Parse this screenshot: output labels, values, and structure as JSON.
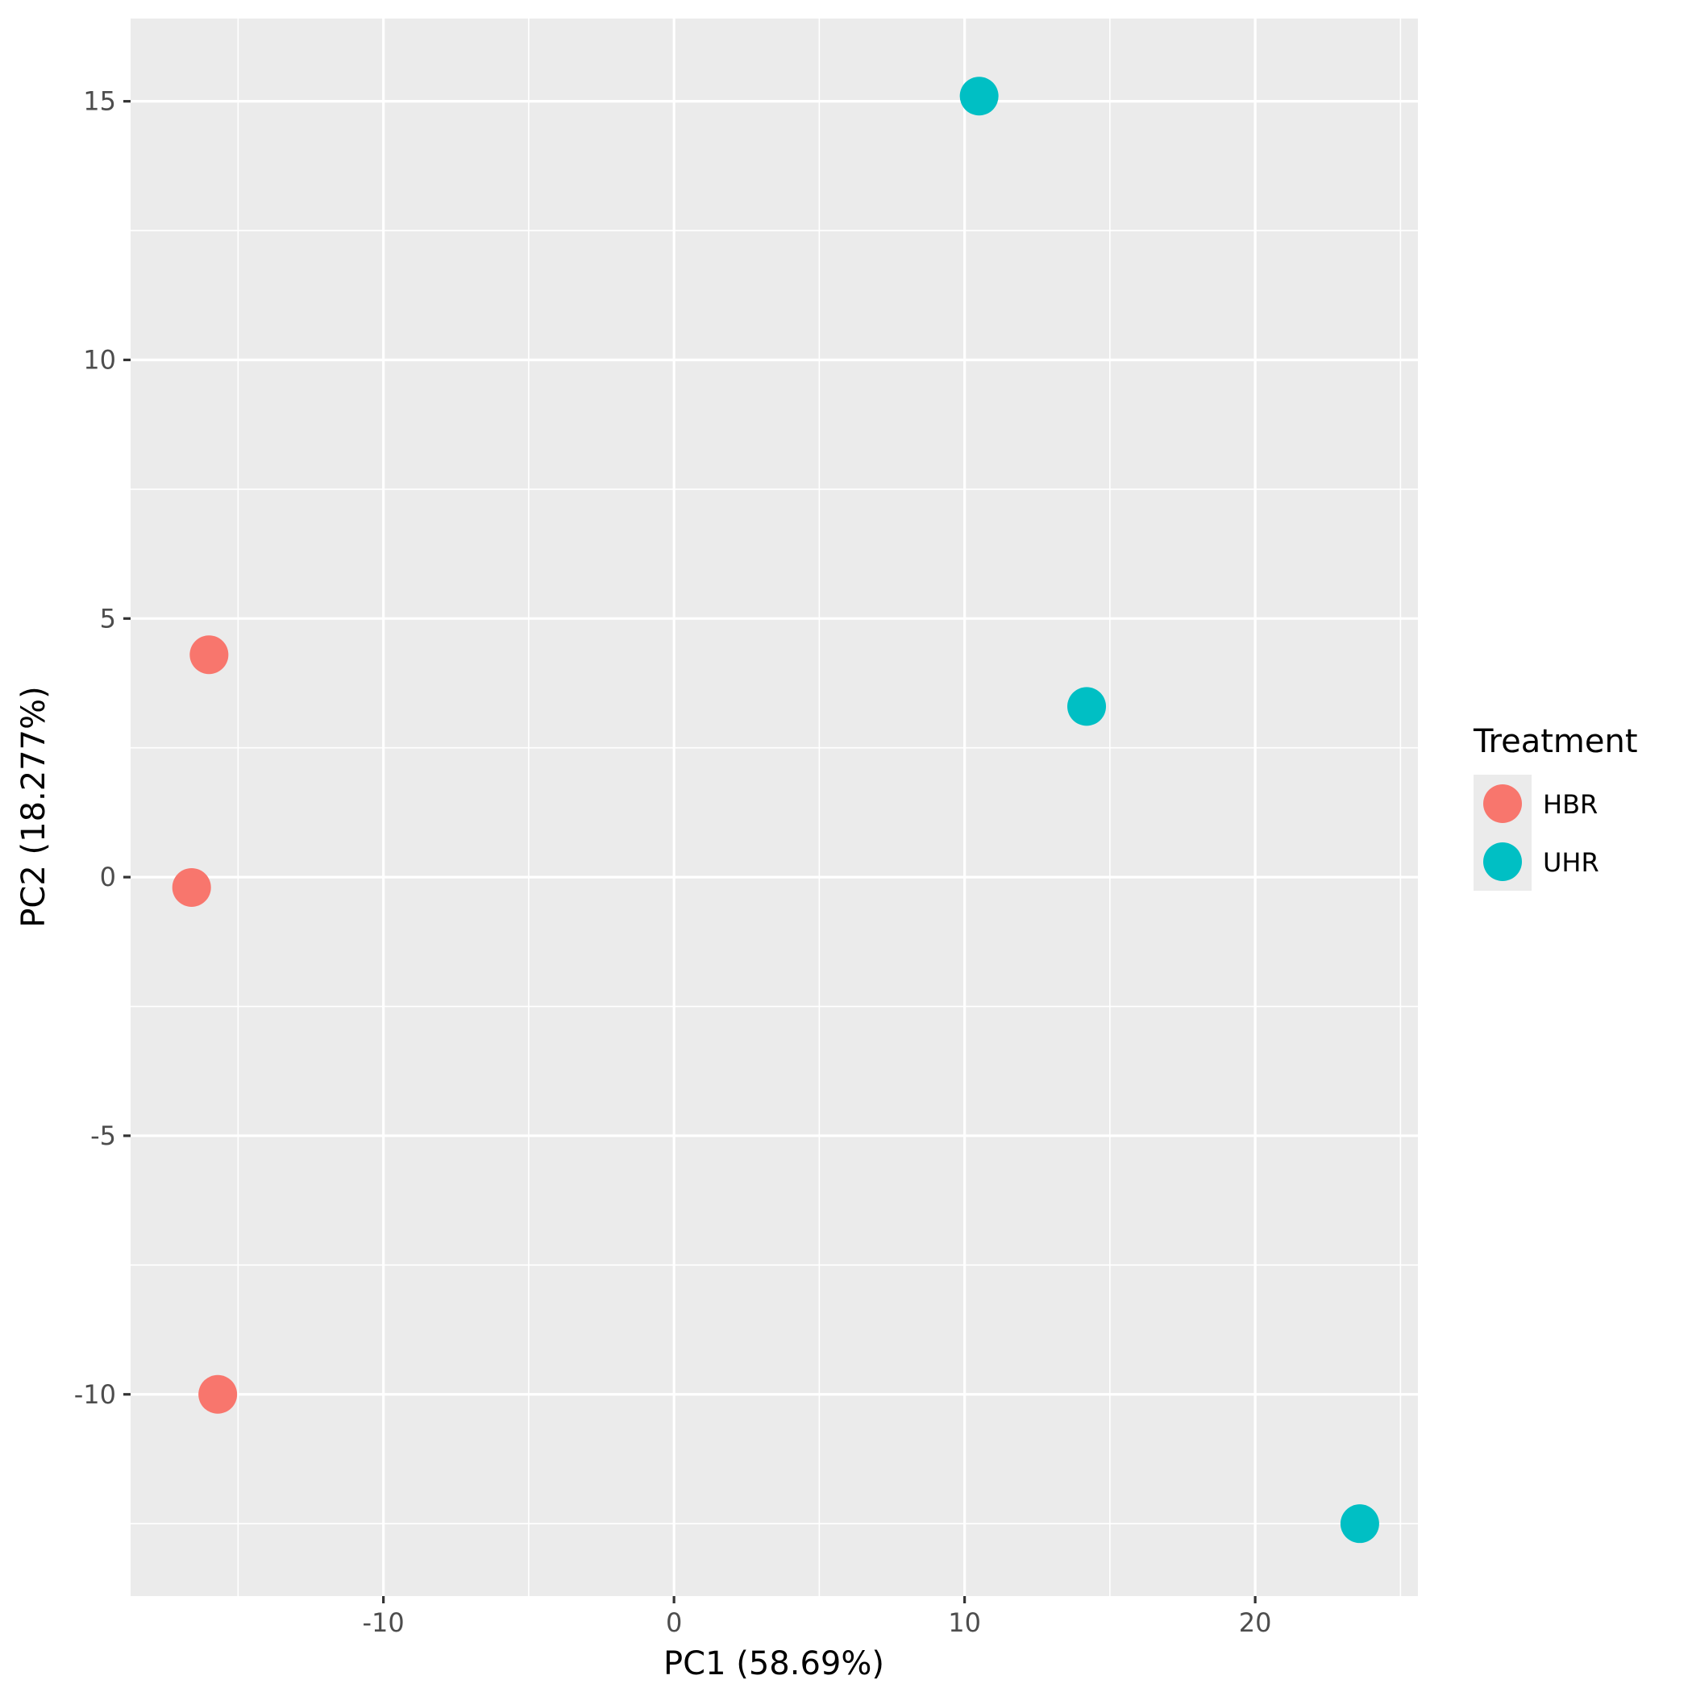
{
  "chart_data": {
    "type": "scatter",
    "title": "",
    "xlabel": "PC1 (58.69%)",
    "ylabel": "PC2 (18.277%)",
    "xlim": [
      -18.7,
      25.6
    ],
    "ylim": [
      -13.9,
      16.6
    ],
    "x_ticks": [
      -10,
      0,
      10,
      20
    ],
    "y_ticks": [
      -10,
      -5,
      0,
      5,
      10,
      15
    ],
    "x_tick_labels": [
      "-10",
      "0",
      "10",
      "20"
    ],
    "y_tick_labels": [
      "-10",
      "-5",
      "0",
      "5",
      "10",
      "15"
    ],
    "grid": true,
    "legend": {
      "title": "Treatment",
      "position": "right"
    },
    "series": [
      {
        "name": "HBR",
        "color": "#F8766D",
        "points": [
          {
            "x": -16.0,
            "y": 4.3
          },
          {
            "x": -16.6,
            "y": -0.2
          },
          {
            "x": -15.7,
            "y": -10.0
          }
        ]
      },
      {
        "name": "UHR",
        "color": "#00BFC4",
        "points": [
          {
            "x": 10.5,
            "y": 15.1
          },
          {
            "x": 14.2,
            "y": 3.3
          },
          {
            "x": 23.6,
            "y": -12.5
          }
        ]
      }
    ]
  }
}
